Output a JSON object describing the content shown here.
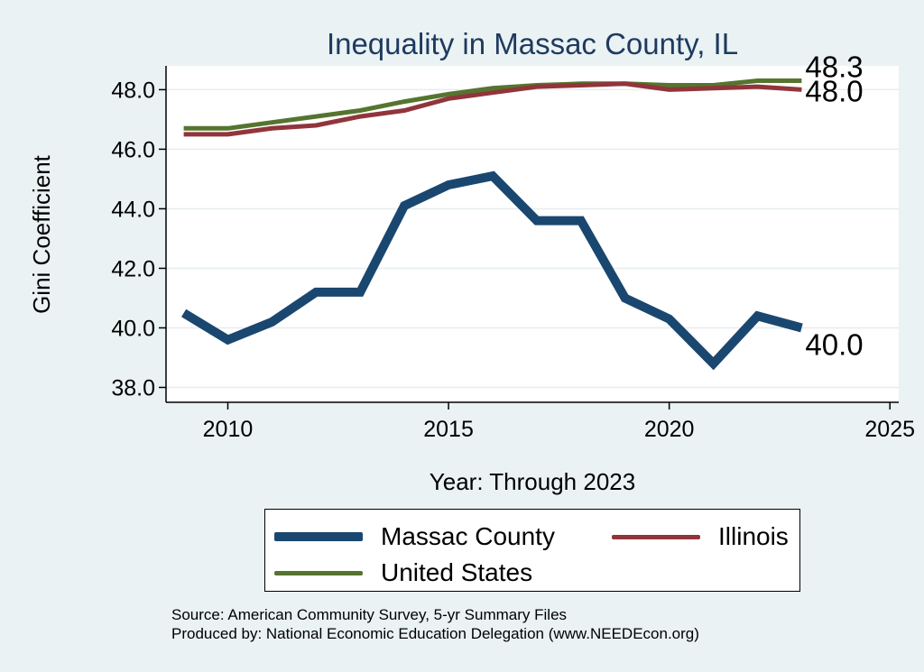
{
  "chart_data": {
    "type": "line",
    "title": "Inequality in Massac County, IL",
    "xlabel": "Year: Through 2023",
    "ylabel": "Gini Coefficient",
    "xlim": [
      2008.6,
      2025.2
    ],
    "ylim": [
      37.5,
      48.8
    ],
    "xticks": [
      2010,
      2015,
      2020,
      2025
    ],
    "yticks": [
      38.0,
      40.0,
      42.0,
      44.0,
      46.0,
      48.0
    ],
    "grid": true,
    "x": [
      2009,
      2010,
      2011,
      2012,
      2013,
      2014,
      2015,
      2016,
      2017,
      2018,
      2019,
      2020,
      2021,
      2022,
      2023
    ],
    "series": [
      {
        "name": "Massac County",
        "color": "#1a476f",
        "values": [
          40.5,
          39.6,
          40.2,
          41.2,
          41.2,
          44.1,
          44.8,
          45.1,
          43.6,
          43.6,
          41.0,
          40.3,
          38.8,
          40.4,
          40.0
        ],
        "end_label": "40.0"
      },
      {
        "name": "Illinois",
        "color": "#90353b",
        "values": [
          46.5,
          46.5,
          46.7,
          46.8,
          47.1,
          47.3,
          47.7,
          47.9,
          48.1,
          48.15,
          48.2,
          48.0,
          48.05,
          48.1,
          48.0
        ],
        "end_label": "48.0"
      },
      {
        "name": "United States",
        "color": "#55752f",
        "values": [
          46.7,
          46.7,
          46.9,
          47.1,
          47.3,
          47.6,
          47.85,
          48.05,
          48.15,
          48.2,
          48.2,
          48.15,
          48.15,
          48.3,
          48.3
        ],
        "end_label": "48.3"
      }
    ],
    "legend": {
      "position": "bottom",
      "items": [
        "Massac County",
        "Illinois",
        "United States"
      ]
    }
  },
  "source": {
    "line1": "Source: American Community Survey, 5-yr Summary Files",
    "line2": "Produced by: National Economic Education Delegation (www.NEEDEcon.org)"
  }
}
